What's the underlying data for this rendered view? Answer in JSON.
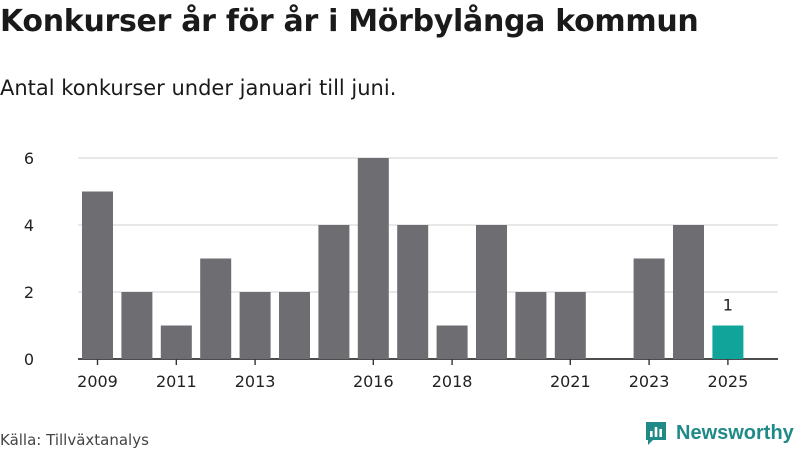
{
  "header": {
    "title": "Konkurser år för år i Mörbylånga kommun",
    "subtitle": "Antal konkurser under januari till juni."
  },
  "footer": {
    "source": "Källa: Tillväxtanalys",
    "brand": "Newsworthy"
  },
  "colors": {
    "bar": "#6e6d72",
    "highlight": "#11a49a",
    "grid": "#d9d9d9",
    "axis": "#333333",
    "brand": "#1f8a87"
  },
  "icons": {
    "brand": "bar-chart-logo-icon"
  },
  "chart_data": {
    "type": "bar",
    "title": "Konkurser år för år i Mörbylånga kommun",
    "subtitle": "Antal konkurser under januari till juni.",
    "xlabel": "",
    "ylabel": "",
    "categories": [
      "2009",
      "2010",
      "2011",
      "2012",
      "2013",
      "2014",
      "2015",
      "2016",
      "2017",
      "2018",
      "2019",
      "2020",
      "2021",
      "2022",
      "2023",
      "2024",
      "2025"
    ],
    "values": [
      5,
      2,
      1,
      3,
      2,
      2,
      4,
      6,
      4,
      1,
      4,
      2,
      2,
      0,
      3,
      4,
      1
    ],
    "x_tick_labels": [
      "2009",
      "2011",
      "2013",
      "2016",
      "2018",
      "2021",
      "2023",
      "2025"
    ],
    "y_ticks": [
      0,
      2,
      4,
      6
    ],
    "ylim": [
      0,
      6
    ],
    "highlight": {
      "category": "2025",
      "label": "1"
    },
    "grid": true,
    "legend": "none"
  }
}
